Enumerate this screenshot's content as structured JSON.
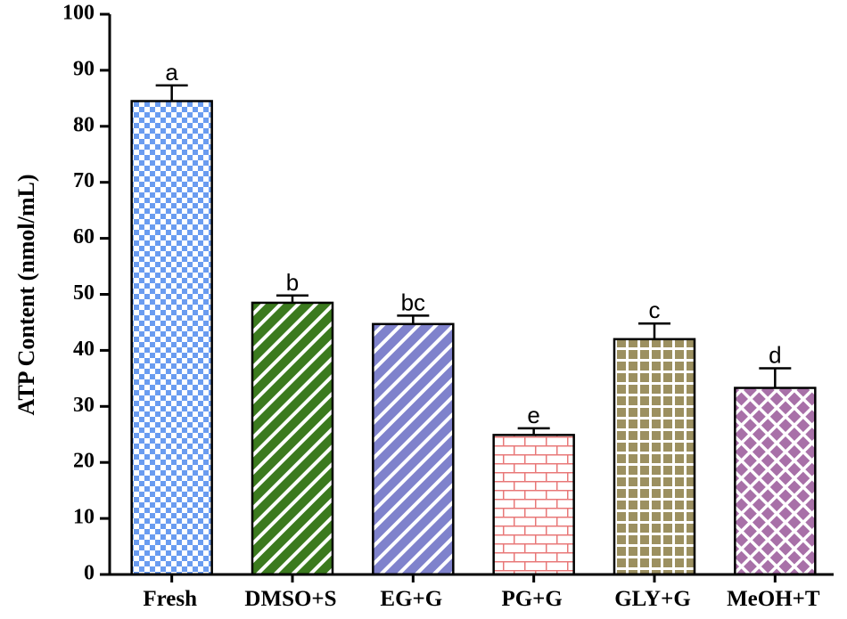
{
  "chart_data": {
    "type": "bar",
    "y_label": "ATP Content (nmol/mL)",
    "categories": [
      "Fresh",
      "DMSO+S",
      "EG+G",
      "PG+G",
      "GLY+G",
      "MeOH+T"
    ],
    "values": [
      84.5,
      48.5,
      44.7,
      24.9,
      42.0,
      33.3
    ],
    "errors": [
      2.8,
      1.3,
      1.5,
      1.2,
      2.8,
      3.5
    ],
    "annotations": [
      "a",
      "b",
      "bc",
      "e",
      "c",
      "d"
    ],
    "colors": [
      "#6a9cf0",
      "#3b7a1e",
      "#7f82cc",
      "#e87878",
      "#9c9060",
      "#a870a8"
    ],
    "hatches": [
      "checker",
      "diagonal",
      "diagonal",
      "brick",
      "grid",
      "lattice"
    ],
    "ylim": [
      0,
      100
    ],
    "yticks": [
      0,
      10,
      20,
      30,
      40,
      50,
      60,
      70,
      80,
      90,
      100
    ]
  }
}
